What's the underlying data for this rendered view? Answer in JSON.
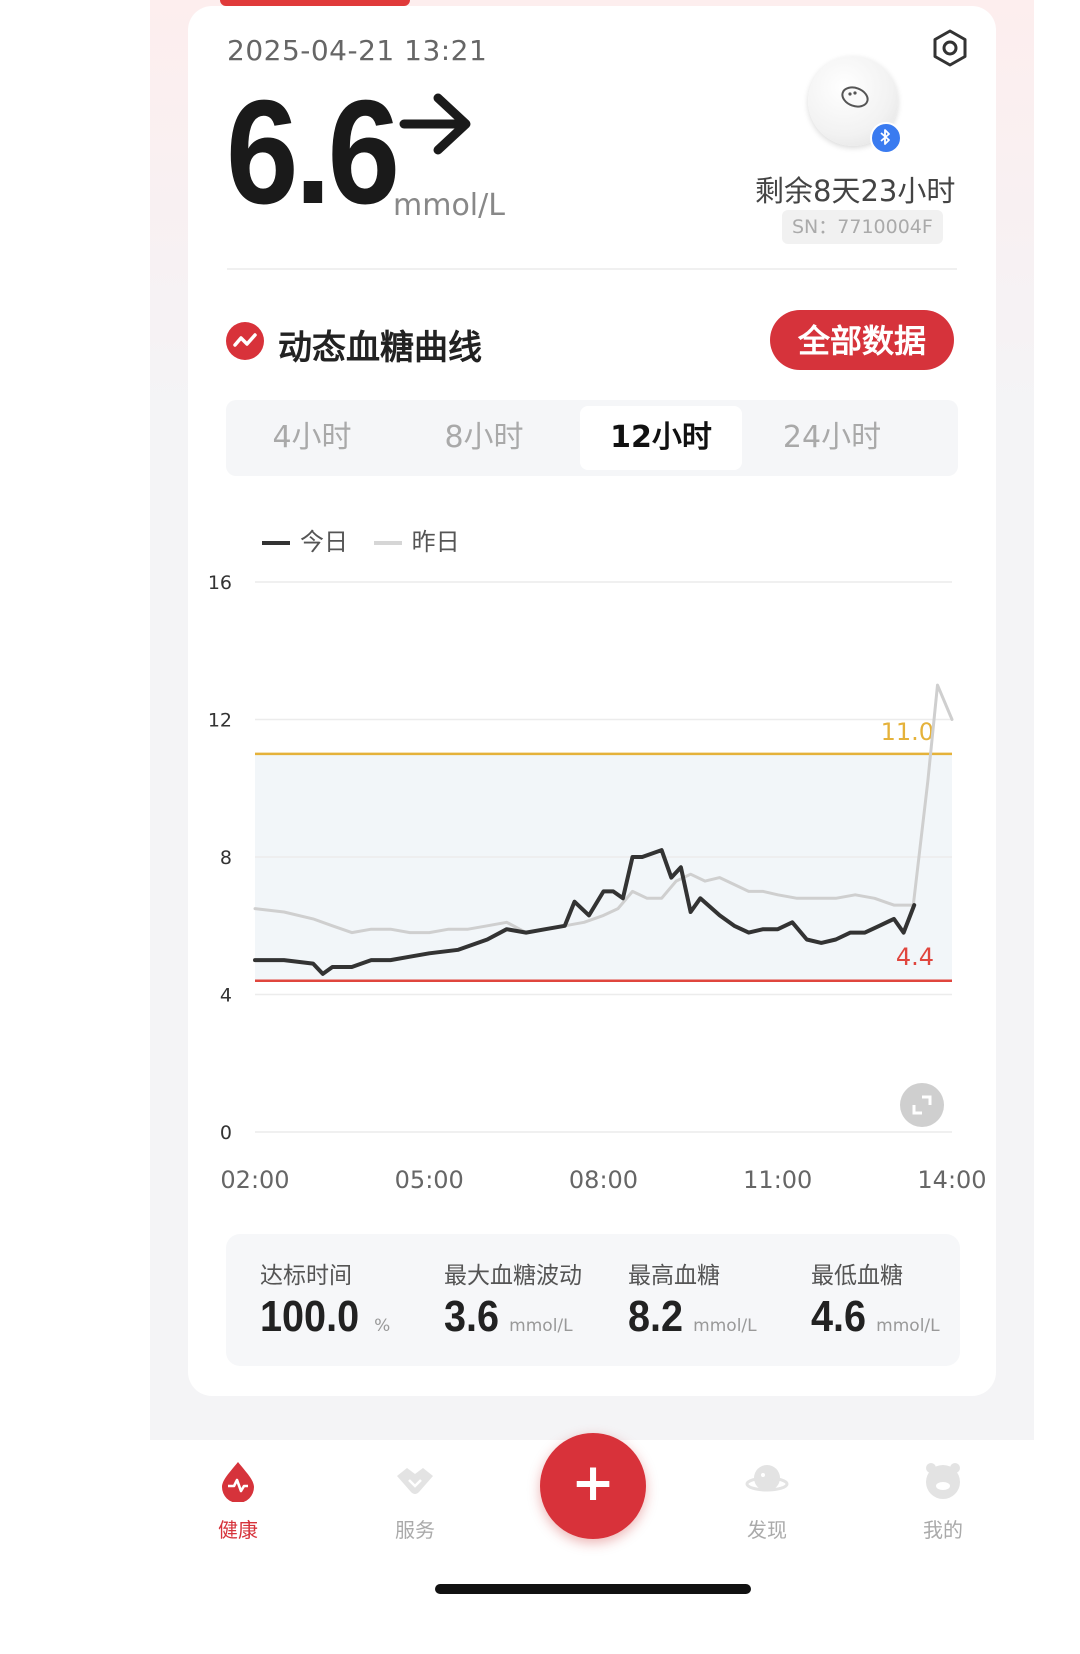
{
  "header": {
    "timestamp": "2025-04-21 13:21",
    "glucose_value": "6.6",
    "unit": "mmol/L",
    "trend_icon": "arrow-right-icon",
    "settings_icon": "hexagon-settings-icon"
  },
  "sensor": {
    "remaining": "剩余8天23小时",
    "sn": "SN：7710004F",
    "bluetooth_icon": "bluetooth-icon"
  },
  "section": {
    "title": "动态血糖曲线",
    "all_data_label": "全部数据"
  },
  "range_tabs": [
    {
      "label": "4小时",
      "active": false
    },
    {
      "label": "8小时",
      "active": false
    },
    {
      "label": "12小时",
      "active": true
    },
    {
      "label": "24小时",
      "active": false
    }
  ],
  "legend": {
    "today": "今日",
    "yesterday": "昨日"
  },
  "chart_data": {
    "type": "line",
    "x_ticks": [
      "02:00",
      "05:00",
      "08:00",
      "11:00",
      "14:00"
    ],
    "y_ticks": [
      0,
      4,
      8,
      12,
      16
    ],
    "ylim": [
      0,
      16
    ],
    "xlim": [
      "02:00",
      "14:00"
    ],
    "target_range": {
      "low": 4.4,
      "high": 11.0
    },
    "threshold_labels": {
      "high": "11.0",
      "low": "4.4"
    },
    "colors": {
      "today": "#333333",
      "yesterday": "#cfcfcf",
      "high": "#e5b23a",
      "low": "#e0463e",
      "range_fill": "#f2f6f9"
    },
    "series": [
      {
        "name": "今日",
        "x": [
          "02:00",
          "02:30",
          "03:00",
          "03:10",
          "03:20",
          "03:40",
          "04:00",
          "04:20",
          "04:40",
          "05:00",
          "05:30",
          "06:00",
          "06:20",
          "06:40",
          "07:00",
          "07:20",
          "07:30",
          "07:45",
          "08:00",
          "08:10",
          "08:20",
          "08:30",
          "08:40",
          "09:00",
          "09:10",
          "09:20",
          "09:30",
          "09:40",
          "10:00",
          "10:15",
          "10:30",
          "10:45",
          "11:00",
          "11:15",
          "11:30",
          "11:45",
          "12:00",
          "12:15",
          "12:30",
          "12:45",
          "13:00",
          "13:10",
          "13:21"
        ],
        "values": [
          5.0,
          5.0,
          4.9,
          4.6,
          4.8,
          4.8,
          5.0,
          5.0,
          5.1,
          5.2,
          5.3,
          5.6,
          5.9,
          5.8,
          5.9,
          6.0,
          6.7,
          6.3,
          7.0,
          7.0,
          6.8,
          8.0,
          8.0,
          8.2,
          7.4,
          7.7,
          6.4,
          6.8,
          6.3,
          6.0,
          5.8,
          5.9,
          5.9,
          6.1,
          5.6,
          5.5,
          5.6,
          5.8,
          5.8,
          6.0,
          6.2,
          5.8,
          6.6
        ]
      },
      {
        "name": "昨日",
        "x": [
          "02:00",
          "02:30",
          "03:00",
          "03:20",
          "03:40",
          "04:00",
          "04:20",
          "04:40",
          "05:00",
          "05:20",
          "05:40",
          "06:00",
          "06:20",
          "06:40",
          "07:00",
          "07:20",
          "07:40",
          "08:00",
          "08:15",
          "08:30",
          "08:45",
          "09:00",
          "09:15",
          "09:30",
          "09:45",
          "10:00",
          "10:15",
          "10:30",
          "10:45",
          "11:00",
          "11:20",
          "11:40",
          "12:00",
          "12:20",
          "12:40",
          "13:00",
          "13:20",
          "13:35",
          "13:45",
          "14:00"
        ],
        "values": [
          6.5,
          6.4,
          6.2,
          6.0,
          5.8,
          5.9,
          5.9,
          5.8,
          5.8,
          5.9,
          5.9,
          6.0,
          6.1,
          5.8,
          5.9,
          6.0,
          6.1,
          6.3,
          6.5,
          7.0,
          6.8,
          6.8,
          7.3,
          7.5,
          7.3,
          7.4,
          7.2,
          7.0,
          7.0,
          6.9,
          6.8,
          6.8,
          6.8,
          6.9,
          6.8,
          6.6,
          6.6,
          10.2,
          13.0,
          12.0
        ]
      }
    ]
  },
  "stats": [
    {
      "label": "达标时间",
      "value": "100.0",
      "unit": "%"
    },
    {
      "label": "最大血糖波动",
      "value": "3.6",
      "unit": "mmol/L"
    },
    {
      "label": "最高血糖",
      "value": "8.2",
      "unit": "mmol/L"
    },
    {
      "label": "最低血糖",
      "value": "4.6",
      "unit": "mmol/L"
    }
  ],
  "nav": [
    {
      "label": "健康",
      "icon": "health-drop-icon",
      "active": true
    },
    {
      "label": "服务",
      "icon": "service-handshake-icon",
      "active": false
    },
    {
      "label": "发现",
      "icon": "discover-planet-icon",
      "active": false
    },
    {
      "label": "我的",
      "icon": "profile-face-icon",
      "active": false
    }
  ],
  "fab": {
    "label": "+",
    "icon": "plus-icon"
  }
}
